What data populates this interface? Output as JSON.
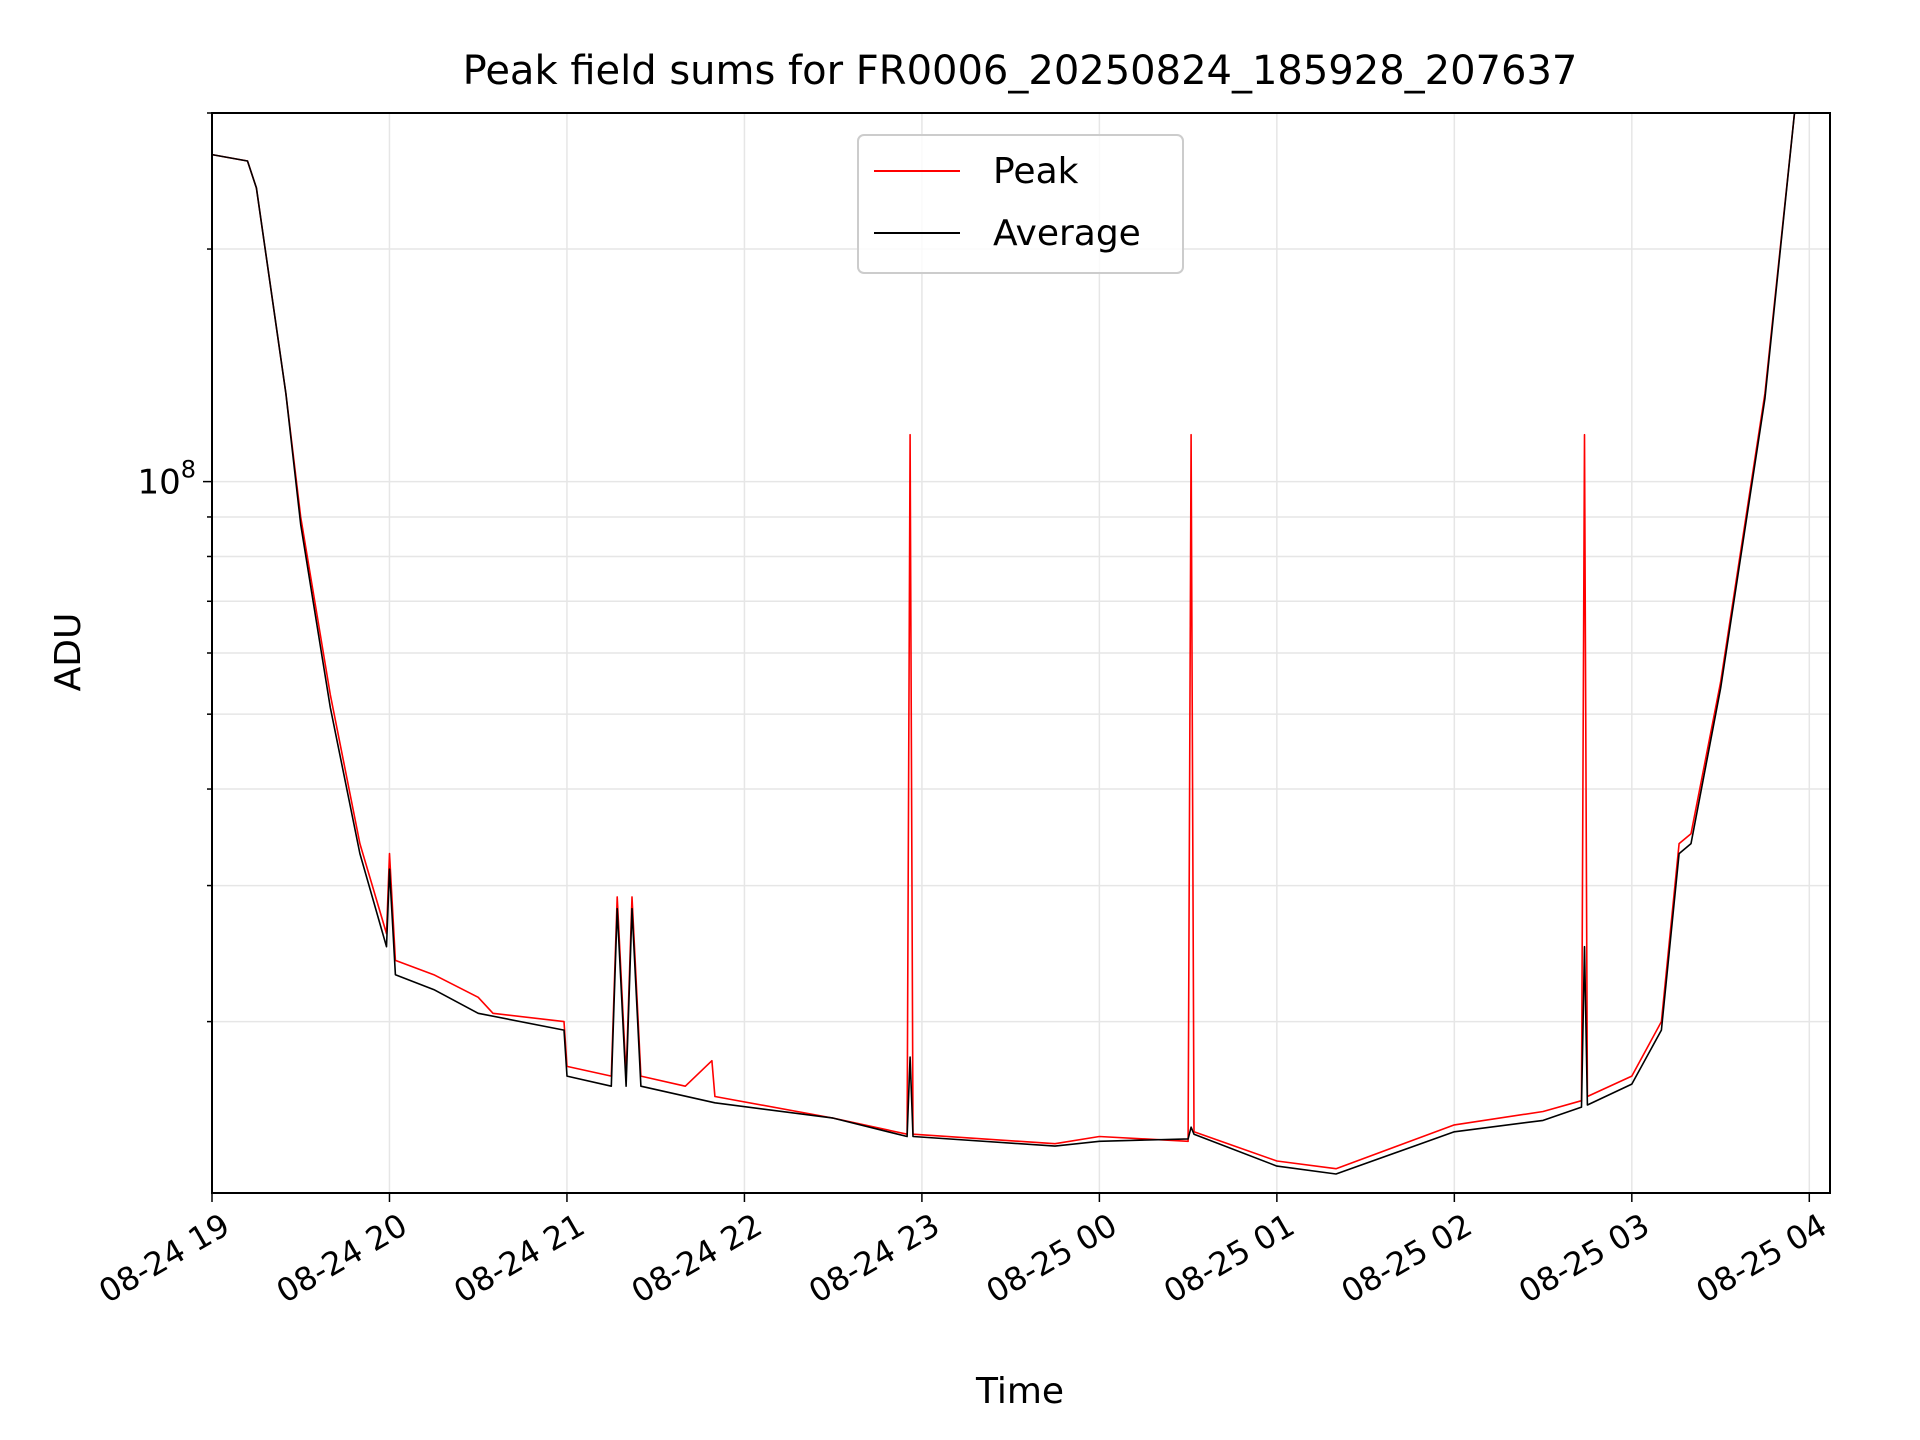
{
  "chart_data": {
    "type": "line",
    "title": "Peak field sums for FR0006_20250824_185928_207637",
    "xlabel": "Time",
    "ylabel": "ADU",
    "xscale": "time",
    "yscale": "log",
    "grid": true,
    "legend": {
      "position": "top-center",
      "entries": [
        "Peak",
        "Average"
      ]
    },
    "xlim": [
      "2025-08-24 19:00",
      "2025-08-25 04:07"
    ],
    "ylim": [
      12000000,
      300000000
    ],
    "x_ticks": [
      "08-24 19",
      "08-24 20",
      "08-24 21",
      "08-24 22",
      "08-24 23",
      "08-25 00",
      "08-25 01",
      "08-25 02",
      "08-25 03",
      "08-25 04"
    ],
    "y_ticks": [
      {
        "value": 100000000,
        "base": "10",
        "exp": "8"
      }
    ],
    "colors": {
      "Peak": "#ff0000",
      "Average": "#000000",
      "grid": "#e6e6e6"
    },
    "series": [
      {
        "name": "Peak",
        "points": [
          [
            "2025-08-24 19:00",
            265000000
          ],
          [
            "2025-08-24 19:12",
            260000000
          ],
          [
            "2025-08-24 19:15",
            240000000
          ],
          [
            "2025-08-24 19:25",
            130000000
          ],
          [
            "2025-08-24 19:30",
            90000000
          ],
          [
            "2025-08-24 19:40",
            53000000
          ],
          [
            "2025-08-24 19:50",
            34000000
          ],
          [
            "2025-08-24 19:59",
            26000000
          ],
          [
            "2025-08-24 20:00",
            33000000
          ],
          [
            "2025-08-24 20:02",
            24000000
          ],
          [
            "2025-08-24 20:15",
            23000000
          ],
          [
            "2025-08-24 20:30",
            21500000
          ],
          [
            "2025-08-24 20:35",
            20500000
          ],
          [
            "2025-08-24 20:59",
            20000000
          ],
          [
            "2025-08-24 21:00",
            17500000
          ],
          [
            "2025-08-24 21:15",
            17000000
          ],
          [
            "2025-08-24 21:17",
            29000000
          ],
          [
            "2025-08-24 21:20",
            17000000
          ],
          [
            "2025-08-24 21:22",
            29000000
          ],
          [
            "2025-08-24 21:25",
            17000000
          ],
          [
            "2025-08-24 21:40",
            16500000
          ],
          [
            "2025-08-24 21:49",
            17800000
          ],
          [
            "2025-08-24 21:50",
            16000000
          ],
          [
            "2025-08-24 22:30",
            15000000
          ],
          [
            "2025-08-24 22:55",
            14300000
          ],
          [
            "2025-08-24 22:56",
            115000000
          ],
          [
            "2025-08-24 22:57",
            14300000
          ],
          [
            "2025-08-24 23:45",
            13900000
          ],
          [
            "2025-08-25 00:00",
            14200000
          ],
          [
            "2025-08-25 00:30",
            14000000
          ],
          [
            "2025-08-25 00:31",
            115000000
          ],
          [
            "2025-08-25 00:32",
            14400000
          ],
          [
            "2025-08-25 01:00",
            13200000
          ],
          [
            "2025-08-25 01:20",
            12900000
          ],
          [
            "2025-08-25 02:00",
            14700000
          ],
          [
            "2025-08-25 02:30",
            15300000
          ],
          [
            "2025-08-25 02:43",
            15800000
          ],
          [
            "2025-08-25 02:44",
            115000000
          ],
          [
            "2025-08-25 02:45",
            16000000
          ],
          [
            "2025-08-25 03:00",
            17000000
          ],
          [
            "2025-08-25 03:10",
            20000000
          ],
          [
            "2025-08-25 03:16",
            34000000
          ],
          [
            "2025-08-25 03:20",
            35000000
          ],
          [
            "2025-08-25 03:30",
            55000000
          ],
          [
            "2025-08-25 03:45",
            130000000
          ],
          [
            "2025-08-25 03:55",
            300000000
          ]
        ]
      },
      {
        "name": "Average",
        "points": [
          [
            "2025-08-24 19:00",
            265000000
          ],
          [
            "2025-08-24 19:12",
            260000000
          ],
          [
            "2025-08-24 19:15",
            240000000
          ],
          [
            "2025-08-24 19:25",
            130000000
          ],
          [
            "2025-08-24 19:30",
            88000000
          ],
          [
            "2025-08-24 19:40",
            51000000
          ],
          [
            "2025-08-24 19:50",
            33000000
          ],
          [
            "2025-08-24 19:59",
            25000000
          ],
          [
            "2025-08-24 20:00",
            31500000
          ],
          [
            "2025-08-24 20:02",
            23000000
          ],
          [
            "2025-08-24 20:15",
            22000000
          ],
          [
            "2025-08-24 20:30",
            20500000
          ],
          [
            "2025-08-24 20:59",
            19500000
          ],
          [
            "2025-08-24 21:00",
            17000000
          ],
          [
            "2025-08-24 21:15",
            16500000
          ],
          [
            "2025-08-24 21:17",
            28000000
          ],
          [
            "2025-08-24 21:20",
            16500000
          ],
          [
            "2025-08-24 21:22",
            28000000
          ],
          [
            "2025-08-24 21:25",
            16500000
          ],
          [
            "2025-08-24 21:50",
            15700000
          ],
          [
            "2025-08-24 22:30",
            15000000
          ],
          [
            "2025-08-24 22:55",
            14200000
          ],
          [
            "2025-08-24 22:56",
            18000000
          ],
          [
            "2025-08-24 22:57",
            14200000
          ],
          [
            "2025-08-24 23:45",
            13800000
          ],
          [
            "2025-08-25 00:00",
            14000000
          ],
          [
            "2025-08-25 00:30",
            14100000
          ],
          [
            "2025-08-25 00:31",
            14600000
          ],
          [
            "2025-08-25 00:32",
            14300000
          ],
          [
            "2025-08-25 01:00",
            13000000
          ],
          [
            "2025-08-25 01:20",
            12700000
          ],
          [
            "2025-08-25 02:00",
            14400000
          ],
          [
            "2025-08-25 02:30",
            14900000
          ],
          [
            "2025-08-25 02:43",
            15500000
          ],
          [
            "2025-08-25 02:44",
            25000000
          ],
          [
            "2025-08-25 02:45",
            15600000
          ],
          [
            "2025-08-25 03:00",
            16600000
          ],
          [
            "2025-08-25 03:10",
            19500000
          ],
          [
            "2025-08-25 03:16",
            33000000
          ],
          [
            "2025-08-25 03:20",
            34000000
          ],
          [
            "2025-08-25 03:30",
            54000000
          ],
          [
            "2025-08-25 03:45",
            128000000
          ],
          [
            "2025-08-25 03:55",
            300000000
          ]
        ]
      }
    ]
  }
}
